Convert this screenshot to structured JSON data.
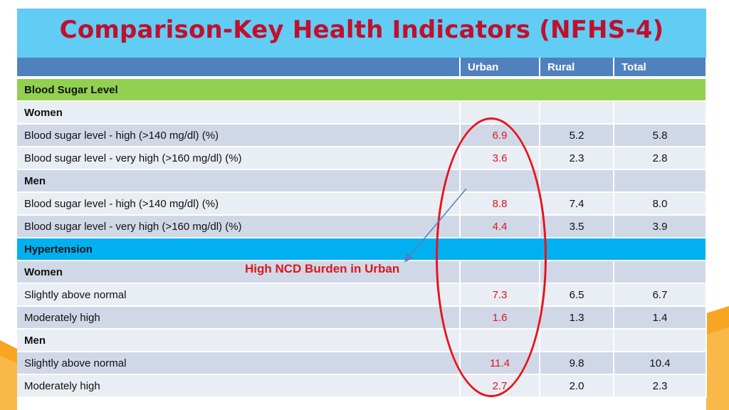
{
  "title": "Comparison-Key Health Indicators (NFHS-4)",
  "columns": [
    "Urban",
    "Rural",
    "Total"
  ],
  "callout": "High NCD Burden in Urban",
  "colors": {
    "title_text": "#c0102c",
    "title_band": "#61ccf4",
    "header_band": "#4f81bd",
    "section_blood_sugar": "#92d050",
    "section_hypertension": "#00b0f0",
    "highlight_red": "#e0151b"
  },
  "rows": [
    {
      "kind": "section",
      "label": "Blood Sugar Level",
      "color": "green"
    },
    {
      "kind": "sub",
      "label": "Women"
    },
    {
      "kind": "data",
      "label": "Blood sugar level - high (>140 mg/dl) (%)",
      "urban": "6.9",
      "rural": "5.2",
      "total": "5.8"
    },
    {
      "kind": "data",
      "label": "Blood sugar level - very high (>160 mg/dl) (%)",
      "urban": "3.6",
      "rural": "2.3",
      "total": "2.8"
    },
    {
      "kind": "sub",
      "label": "Men"
    },
    {
      "kind": "data",
      "label": "Blood sugar level - high (>140 mg/dl) (%)",
      "urban": "8.8",
      "rural": "7.4",
      "total": "8.0"
    },
    {
      "kind": "data",
      "label": "Blood sugar level - very high (>160 mg/dl) (%)",
      "urban": "4.4",
      "rural": "3.5",
      "total": "3.9"
    },
    {
      "kind": "section",
      "label": "Hypertension",
      "color": "blue"
    },
    {
      "kind": "sub",
      "label": "Women"
    },
    {
      "kind": "data",
      "label": "Slightly above normal",
      "urban": "7.3",
      "rural": "6.5",
      "total": "6.7"
    },
    {
      "kind": "data",
      "label": "Moderately high",
      "urban": "1.6",
      "rural": "1.3",
      "total": "1.4"
    },
    {
      "kind": "sub",
      "label": "Men"
    },
    {
      "kind": "data",
      "label": "Slightly above normal",
      "urban": "11.4",
      "rural": "9.8",
      "total": "10.4"
    },
    {
      "kind": "data",
      "label": "Moderately high",
      "urban": "2.7",
      "rural": "2.0",
      "total": "2.3"
    }
  ]
}
